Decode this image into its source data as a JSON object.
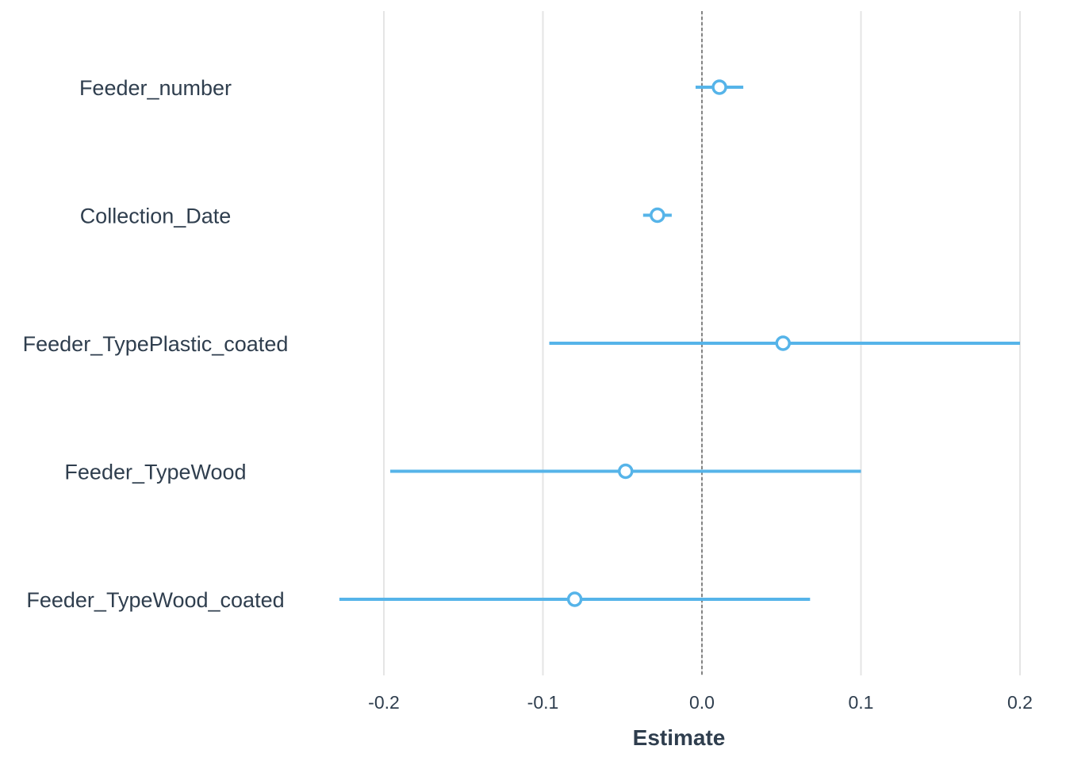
{
  "chart_data": {
    "type": "coefficient-plot",
    "xlabel": "Estimate",
    "xlim": [
      -0.2,
      0.2
    ],
    "x_ticks": [
      -0.2,
      -0.1,
      0.0,
      0.1,
      0.2
    ],
    "x_tick_labels": [
      "-0.2",
      "-0.1",
      "0.0",
      "0.1",
      "0.2"
    ],
    "reference_line": 0.0,
    "grid": "vertical",
    "color": "#56B4E9",
    "terms": [
      {
        "label": "Feeder_number",
        "estimate": 0.011,
        "ci_low": -0.004,
        "ci_high": 0.026
      },
      {
        "label": "Collection_Date",
        "estimate": -0.028,
        "ci_low": -0.037,
        "ci_high": -0.019
      },
      {
        "label": "Feeder_TypePlastic_coated",
        "estimate": 0.051,
        "ci_low": -0.096,
        "ci_high": 0.2
      },
      {
        "label": "Feeder_TypeWood",
        "estimate": -0.048,
        "ci_low": -0.196,
        "ci_high": 0.1
      },
      {
        "label": "Feeder_TypeWood_coated",
        "estimate": -0.08,
        "ci_low": -0.228,
        "ci_high": 0.068
      }
    ]
  }
}
